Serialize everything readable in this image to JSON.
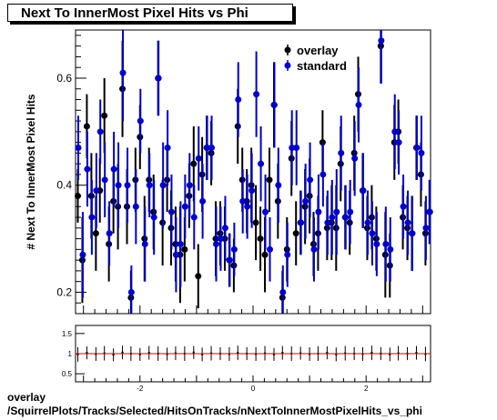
{
  "title": "Next To InnerMost Pixel Hits vs Phi",
  "footer": {
    "line1": "overlay",
    "line2": "/SquirrelPlots/Tracks/Selected/HitsOnTracks/nNextToInnerMostPixelHits_vs_phi"
  },
  "chart_data": [
    {
      "type": "scatter",
      "ylabel": "# Next To InnerMost Pixel Hits",
      "xlabel": "",
      "xlim": [
        -3.14,
        3.14
      ],
      "ylim": [
        0.16,
        0.69
      ],
      "yticks": [
        0.2,
        0.4,
        0.6
      ],
      "ytick_labels": [
        "0.2",
        "0.4",
        "0.6"
      ],
      "legend_position": "top-right",
      "series": [
        {
          "name": "overlay",
          "color": "#000000",
          "x": [
            -3.1,
            -3.02,
            -2.94,
            -2.86,
            -2.78,
            -2.71,
            -2.63,
            -2.55,
            -2.47,
            -2.39,
            -2.31,
            -2.23,
            -2.16,
            -2.08,
            -2.0,
            -1.92,
            -1.84,
            -1.76,
            -1.68,
            -1.6,
            -1.52,
            -1.45,
            -1.37,
            -1.29,
            -1.21,
            -1.13,
            -1.05,
            -0.97,
            -0.9,
            -0.82,
            -0.74,
            -0.66,
            -0.58,
            -0.5,
            -0.42,
            -0.34,
            -0.27,
            -0.19,
            -0.11,
            -0.03,
            0.05,
            0.13,
            0.21,
            0.29,
            0.37,
            0.44,
            0.52,
            0.6,
            0.68,
            0.76,
            0.84,
            0.92,
            1.0,
            1.07,
            1.15,
            1.23,
            1.31,
            1.39,
            1.47,
            1.55,
            1.63,
            1.71,
            1.79,
            1.86,
            1.94,
            2.02,
            2.1,
            2.18,
            2.26,
            2.34,
            2.42,
            2.5,
            2.57,
            2.65,
            2.73,
            2.81,
            2.89,
            2.97,
            3.05,
            3.12
          ],
          "y": [
            0.38,
            0.26,
            0.51,
            0.38,
            0.31,
            0.39,
            0.53,
            0.29,
            0.37,
            0.36,
            0.58,
            0.36,
            0.19,
            0.41,
            0.49,
            0.3,
            0.41,
            0.35,
            0.6,
            0.33,
            0.41,
            0.32,
            0.29,
            0.27,
            0.28,
            0.38,
            0.44,
            0.23,
            0.42,
            0.47,
            0.46,
            0.3,
            0.31,
            0.3,
            0.26,
            0.25,
            0.51,
            0.41,
            0.37,
            0.4,
            0.33,
            0.3,
            0.27,
            0.41,
            0.55,
            0.37,
            0.19,
            0.28,
            0.45,
            0.31,
            0.33,
            0.36,
            0.38,
            0.29,
            0.31,
            0.48,
            0.32,
            0.33,
            0.32,
            0.44,
            0.34,
            0.33,
            0.46,
            0.57,
            0.39,
            0.32,
            0.34,
            0.3,
            0.66,
            0.27,
            0.25,
            0.48,
            0.5,
            0.34,
            0.32,
            0.31,
            0.47,
            0.42,
            0.31,
            0.35
          ],
          "err": [
            0.05,
            0.08,
            0.06,
            0.08,
            0.07,
            0.06,
            0.07,
            0.07,
            0.06,
            0.08,
            0.09,
            0.07,
            0.05,
            0.06,
            0.06,
            0.08,
            0.06,
            0.07,
            0.07,
            0.08,
            0.06,
            0.07,
            0.07,
            0.09,
            0.06,
            0.06,
            0.07,
            0.06,
            0.07,
            0.06,
            0.06,
            0.07,
            0.06,
            0.06,
            0.05,
            0.05,
            0.07,
            0.06,
            0.06,
            0.07,
            0.07,
            0.06,
            0.07,
            0.06,
            0.08,
            0.07,
            0.05,
            0.06,
            0.07,
            0.06,
            0.06,
            0.07,
            0.07,
            0.06,
            0.07,
            0.06,
            0.06,
            0.07,
            0.08,
            0.07,
            0.06,
            0.06,
            0.07,
            0.07,
            0.07,
            0.06,
            0.06,
            0.06,
            0.07,
            0.08,
            0.06,
            0.07,
            0.06,
            0.06,
            0.06,
            0.07,
            0.06,
            0.06,
            0.06,
            0.06
          ]
        },
        {
          "name": "standard",
          "color": "#0000cc",
          "x": [
            -3.1,
            -3.02,
            -2.94,
            -2.86,
            -2.78,
            -2.71,
            -2.63,
            -2.55,
            -2.47,
            -2.39,
            -2.31,
            -2.23,
            -2.16,
            -2.08,
            -2.0,
            -1.92,
            -1.84,
            -1.76,
            -1.68,
            -1.6,
            -1.52,
            -1.45,
            -1.37,
            -1.29,
            -1.21,
            -1.13,
            -1.05,
            -0.97,
            -0.9,
            -0.82,
            -0.74,
            -0.66,
            -0.58,
            -0.5,
            -0.42,
            -0.34,
            -0.27,
            -0.19,
            -0.11,
            -0.03,
            0.05,
            0.13,
            0.21,
            0.29,
            0.37,
            0.44,
            0.52,
            0.6,
            0.68,
            0.76,
            0.84,
            0.92,
            1.0,
            1.07,
            1.15,
            1.23,
            1.31,
            1.39,
            1.47,
            1.55,
            1.63,
            1.71,
            1.79,
            1.86,
            1.94,
            2.02,
            2.1,
            2.18,
            2.26,
            2.34,
            2.42,
            2.5,
            2.57,
            2.65,
            2.73,
            2.81,
            2.89,
            2.97,
            3.05,
            3.12
          ],
          "y": [
            0.47,
            0.27,
            0.43,
            0.34,
            0.39,
            0.5,
            0.41,
            0.31,
            0.43,
            0.4,
            0.61,
            0.4,
            0.2,
            0.36,
            0.52,
            0.29,
            0.4,
            0.34,
            0.6,
            0.4,
            0.47,
            0.35,
            0.27,
            0.29,
            0.36,
            0.4,
            0.34,
            0.45,
            0.37,
            0.47,
            0.47,
            0.29,
            0.3,
            0.32,
            0.26,
            0.28,
            0.56,
            0.37,
            0.36,
            0.39,
            0.57,
            0.44,
            0.35,
            0.28,
            0.55,
            0.4,
            0.2,
            0.27,
            0.47,
            0.47,
            0.33,
            0.37,
            0.41,
            0.28,
            0.35,
            0.42,
            0.33,
            0.34,
            0.35,
            0.46,
            0.34,
            0.35,
            0.45,
            0.55,
            0.39,
            0.33,
            0.31,
            0.29,
            0.67,
            0.29,
            0.28,
            0.5,
            0.48,
            0.36,
            0.33,
            0.31,
            0.47,
            0.46,
            0.32,
            0.35
          ],
          "err": [
            0.06,
            0.08,
            0.07,
            0.07,
            0.07,
            0.06,
            0.07,
            0.06,
            0.07,
            0.08,
            0.09,
            0.07,
            0.05,
            0.07,
            0.06,
            0.07,
            0.06,
            0.07,
            0.07,
            0.08,
            0.07,
            0.07,
            0.07,
            0.08,
            0.06,
            0.06,
            0.06,
            0.06,
            0.07,
            0.06,
            0.06,
            0.07,
            0.06,
            0.06,
            0.05,
            0.05,
            0.07,
            0.06,
            0.06,
            0.07,
            0.08,
            0.07,
            0.07,
            0.06,
            0.08,
            0.07,
            0.05,
            0.06,
            0.07,
            0.07,
            0.06,
            0.07,
            0.07,
            0.06,
            0.07,
            0.06,
            0.06,
            0.07,
            0.08,
            0.07,
            0.06,
            0.06,
            0.07,
            0.07,
            0.07,
            0.06,
            0.06,
            0.06,
            0.08,
            0.07,
            0.06,
            0.07,
            0.06,
            0.06,
            0.06,
            0.07,
            0.06,
            0.07,
            0.06,
            0.06
          ]
        }
      ]
    },
    {
      "type": "line",
      "xlabel": "",
      "ylabel": "",
      "xlim": [
        -3.14,
        3.14
      ],
      "ylim": [
        0.3,
        1.7
      ],
      "yticks": [
        0.5,
        1,
        1.5
      ],
      "ytick_labels": [
        "0.5",
        "1",
        "1.5"
      ],
      "xticks": [
        -2,
        0,
        2
      ],
      "xtick_labels": [
        "-2",
        "0",
        "2"
      ],
      "reference_line": 1,
      "reference_color": "#cc0000",
      "series": [
        {
          "color": "#000000",
          "x": [
            -3.1,
            -2.94,
            -2.78,
            -2.63,
            -2.47,
            -2.31,
            -2.16,
            -2.0,
            -1.84,
            -1.68,
            -1.52,
            -1.37,
            -1.21,
            -1.05,
            -0.9,
            -0.74,
            -0.58,
            -0.42,
            -0.27,
            -0.11,
            0.05,
            0.21,
            0.37,
            0.52,
            0.68,
            0.84,
            1.0,
            1.15,
            1.31,
            1.47,
            1.63,
            1.79,
            1.94,
            2.1,
            2.26,
            2.42,
            2.57,
            2.73,
            2.89,
            3.05
          ],
          "y": [
            0.98,
            1.02,
            0.99,
            1.01,
            0.97,
            1.03,
            1.0,
            0.98,
            1.02,
            1.0,
            0.99,
            1.01,
            1.0,
            1.03,
            0.98,
            1.01,
            1.0,
            0.99,
            1.02,
            1.0,
            0.99,
            1.01,
            0.98,
            1.02,
            1.0,
            1.01,
            0.99,
            1.0,
            1.02,
            0.98,
            1.01,
            1.0,
            0.99,
            1.02,
            1.0,
            0.98,
            1.01,
            1.0,
            1.02,
            0.99
          ],
          "err": [
            0.18,
            0.16,
            0.17,
            0.18,
            0.16,
            0.17,
            0.18,
            0.16,
            0.17,
            0.18,
            0.16,
            0.17,
            0.18,
            0.16,
            0.17,
            0.18,
            0.16,
            0.17,
            0.18,
            0.16,
            0.17,
            0.18,
            0.16,
            0.17,
            0.18,
            0.16,
            0.17,
            0.18,
            0.16,
            0.17,
            0.18,
            0.16,
            0.17,
            0.18,
            0.16,
            0.17,
            0.18,
            0.16,
            0.17,
            0.18
          ]
        }
      ]
    }
  ]
}
